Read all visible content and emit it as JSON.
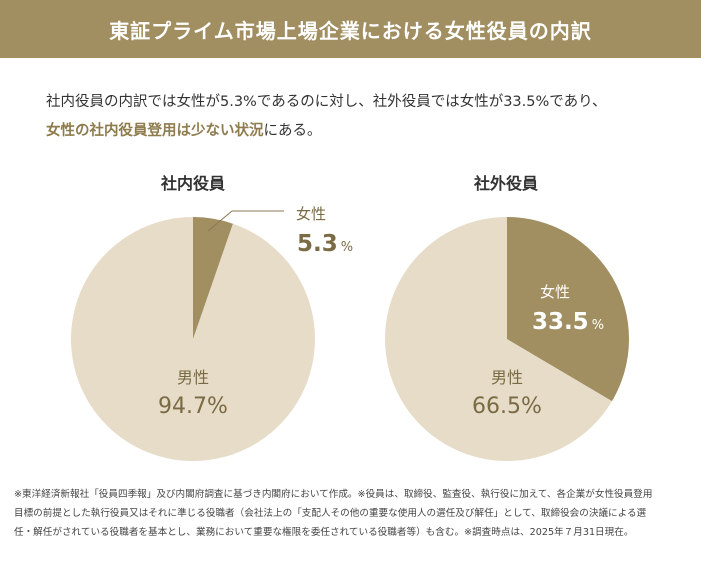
{
  "header": {
    "title": "東証プライム市場上場企業における女性役員の内訳"
  },
  "lead": {
    "line1": "社内役員の内訳では女性が5.3%であるのに対し、社外役員では女性が33.5%であり、",
    "line2_strong": "女性の社内役員登用は少ない状況",
    "line2_rest": "にある。"
  },
  "colors": {
    "accent": "#a18f62",
    "light": "#e6dcc8",
    "label_dark": "#7a6b45"
  },
  "chart_data": [
    {
      "type": "pie",
      "title": "社内役員",
      "slices": [
        {
          "label": "女性",
          "value": 5.3,
          "value_text": "5.3",
          "unit": "%"
        },
        {
          "label": "男性",
          "value": 94.7,
          "value_text": "94.7%"
        }
      ]
    },
    {
      "type": "pie",
      "title": "社外役員",
      "slices": [
        {
          "label": "女性",
          "value": 33.5,
          "value_text": "33.5",
          "unit": "%"
        },
        {
          "label": "男性",
          "value": 66.5,
          "value_text": "66.5%"
        }
      ]
    }
  ],
  "footnote": {
    "line1": "※東洋経済新報社「役員四季報」及び内閣府調査に基づき内閣府において作成。※役員は、取締役、監査役、執行役に加えて、各企業が女性役員登用",
    "line2": "目標の前提とした執行役員又はそれに準じる役職者（会社法上の「支配人その他の重要な使用人の選任及び解任」として、取締役会の決議による選",
    "line3": "任・解任がされている役職者を基本とし、業務において重要な権限を委任されている役職者等）も含む。※調査時点は、2025年７月31日現在。"
  }
}
